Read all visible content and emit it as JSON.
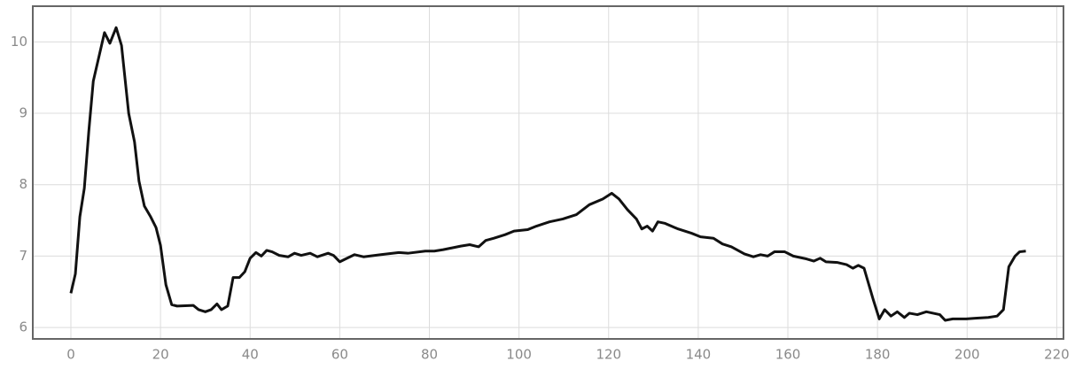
{
  "chart_data": {
    "type": "line",
    "x": [
      0,
      1,
      2,
      3,
      4,
      5,
      7.5,
      8.7,
      10.1,
      11.3,
      12.9,
      14.2,
      15.2,
      16.4,
      17.8,
      19,
      20,
      21.2,
      22.5,
      23.7,
      27.3,
      28.5,
      30,
      31.3,
      32.6,
      33.6,
      35,
      36.2,
      37.6,
      38.8,
      40,
      41.3,
      42.5,
      43.7,
      44.9,
      46.5,
      48.5,
      49.9,
      51.4,
      53.4,
      55,
      57.4,
      58.6,
      60,
      61.3,
      63.3,
      65.3,
      69.2,
      73.2,
      75.2,
      79.1,
      81.1,
      83.1,
      87,
      89,
      91,
      92.6,
      94.4,
      96.9,
      98.9,
      101.9,
      103.9,
      106.8,
      109.8,
      112.8,
      115.7,
      118.7,
      120.7,
      122.3,
      124.2,
      126.2,
      127.4,
      128.6,
      129.8,
      131,
      132.5,
      135.5,
      138.5,
      140.5,
      143.4,
      145.4,
      147.4,
      150.3,
      152.3,
      153.9,
      155.5,
      157,
      159.3,
      161.2,
      164.2,
      165.8,
      167.2,
      168.5,
      171.1,
      173.1,
      174.5,
      175.7,
      177,
      179,
      180.4,
      181.6,
      183,
      184.4,
      186,
      187.1,
      188.9,
      190.9,
      193.9,
      195.1,
      196.8,
      199.8,
      201.8,
      204.7,
      206.7,
      208.1,
      209.3,
      210.7,
      211.7,
      213.1
    ],
    "values": [
      6.48,
      6.75,
      7.55,
      7.95,
      8.75,
      9.45,
      10.13,
      9.98,
      10.2,
      9.95,
      9.0,
      8.6,
      8.05,
      7.7,
      7.55,
      7.4,
      7.15,
      6.6,
      6.32,
      6.3,
      6.31,
      6.25,
      6.22,
      6.25,
      6.33,
      6.25,
      6.3,
      6.7,
      6.7,
      6.78,
      6.97,
      7.05,
      7.0,
      7.08,
      7.06,
      7.01,
      6.99,
      7.04,
      7.01,
      7.04,
      6.99,
      7.04,
      7.01,
      6.92,
      6.96,
      7.02,
      6.99,
      7.02,
      7.05,
      7.04,
      7.07,
      7.07,
      7.09,
      7.14,
      7.16,
      7.13,
      7.22,
      7.25,
      7.3,
      7.35,
      7.37,
      7.42,
      7.48,
      7.52,
      7.58,
      7.72,
      7.8,
      7.88,
      7.8,
      7.65,
      7.52,
      7.38,
      7.42,
      7.35,
      7.48,
      7.46,
      7.38,
      7.32,
      7.27,
      7.25,
      7.17,
      7.13,
      7.03,
      6.99,
      7.02,
      7.0,
      7.06,
      7.06,
      7.0,
      6.96,
      6.93,
      6.97,
      6.92,
      6.91,
      6.88,
      6.83,
      6.87,
      6.83,
      6.4,
      6.12,
      6.25,
      6.16,
      6.22,
      6.14,
      6.2,
      6.18,
      6.22,
      6.18,
      6.1,
      6.12,
      6.12,
      6.13,
      6.14,
      6.16,
      6.25,
      6.85,
      7.0,
      7.06,
      7.07
    ],
    "color": "#111111",
    "xlim": [
      -8.5,
      221.5
    ],
    "xticks": [
      0,
      20,
      40,
      60,
      80,
      100,
      120,
      140,
      160,
      180,
      200,
      220
    ],
    "ylim": [
      5.84,
      10.5
    ],
    "yticks": [
      6,
      7,
      8,
      9,
      10
    ],
    "grid": true
  }
}
